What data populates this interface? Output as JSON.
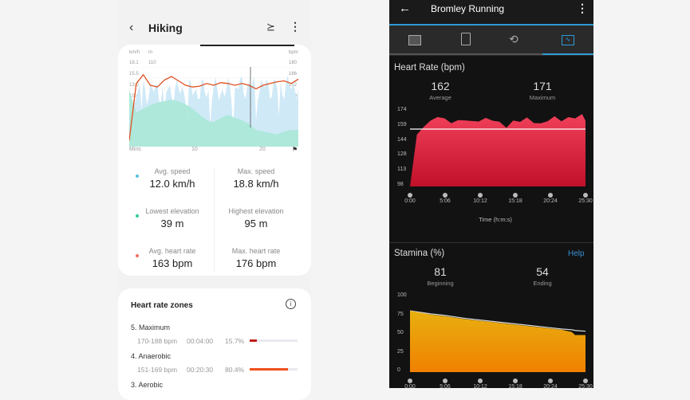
{
  "left": {
    "header": {
      "title": "Hiking"
    },
    "chart": {
      "left_units": [
        "km/h",
        "m"
      ],
      "right_unit": "bpm",
      "speed_ticks": [
        "18.1",
        "15.5",
        "13.0",
        "10.4",
        "7.8",
        "5.2",
        "2.6"
      ],
      "elevation_ticks": [
        "110"
      ],
      "bpm_ticks": [
        "180",
        "166",
        "152",
        "139",
        "125",
        "111",
        "97"
      ],
      "x_label": "Mins",
      "x_ticks": [
        "10",
        "20"
      ]
    },
    "stats": [
      {
        "label": "Avg. speed",
        "value": "12.0 km/h",
        "color": "#5bc0de"
      },
      {
        "label": "Max. speed",
        "value": "18.8 km/h"
      },
      {
        "label": "Lowest elevation",
        "value": "39 m",
        "color": "#2ecc9a"
      },
      {
        "label": "Highest elevation",
        "value": "95 m"
      },
      {
        "label": "Avg. heart rate",
        "value": "163 bpm",
        "color": "#f07060"
      },
      {
        "label": "Max. heart rate",
        "value": "176 bpm"
      }
    ],
    "zones": {
      "title": "Heart rate zones",
      "items": [
        {
          "name": "5. Maximum",
          "range": "170-188 bpm",
          "time": "00:04:00",
          "pct": "15.7%",
          "fill": 0.157,
          "color": "#c0201a"
        },
        {
          "name": "4. Anaerobic",
          "range": "151-169 bpm",
          "time": "00:20:30",
          "pct": "80.4%",
          "fill": 0.804,
          "color": "#f05020"
        },
        {
          "name": "3. Aerobic"
        }
      ]
    }
  },
  "right": {
    "header": {
      "title": "Bromley Running"
    },
    "tabs": [
      "overview-icon",
      "details-icon",
      "laps-icon",
      "charts-icon"
    ],
    "active_tab": 3,
    "accent": "#2e9bd6",
    "hr": {
      "title": "Heart Rate (bpm)",
      "average": "162",
      "average_label": "Average",
      "maximum": "171",
      "maximum_label": "Maximum",
      "x_label": "Time (h:m:s)"
    },
    "stamina": {
      "title": "Stamina (%)",
      "help": "Help",
      "beginning": "81",
      "beginning_label": "Beginning",
      "ending": "54",
      "ending_label": "Ending"
    }
  },
  "chart_data": [
    {
      "type": "area",
      "title": "Heart Rate (bpm)",
      "xlabel": "Time (h:m:s)",
      "x_ticks": [
        "0:00",
        "5:06",
        "10:12",
        "15:18",
        "20:24",
        "25:30"
      ],
      "y_ticks": [
        174,
        159,
        144,
        128,
        113,
        98
      ],
      "ylim": [
        98,
        174
      ],
      "reference_line": 162,
      "x": [
        0,
        1,
        2,
        3,
        4,
        5,
        6,
        7,
        8,
        9,
        10,
        11,
        12,
        13,
        14,
        15,
        16,
        17,
        18,
        19,
        20,
        21,
        22,
        23,
        24,
        25,
        25.5
      ],
      "values": [
        98,
        150,
        158,
        164,
        168,
        166,
        162,
        164,
        165,
        163,
        164,
        166,
        165,
        162,
        158,
        163,
        164,
        166,
        163,
        160,
        165,
        167,
        165,
        166,
        168,
        169,
        164
      ]
    },
    {
      "type": "area",
      "title": "Stamina (%)",
      "x_ticks": [
        "0:00",
        "5:06",
        "10:12",
        "15:18",
        "20:24",
        "25:30"
      ],
      "y_ticks": [
        100,
        75,
        50,
        25,
        0
      ],
      "ylim": [
        0,
        100
      ],
      "x": [
        0,
        3,
        5,
        8,
        12,
        16,
        20,
        22,
        23.5,
        24,
        25.5
      ],
      "values": [
        81,
        76,
        74,
        70,
        66,
        62,
        58,
        56,
        53,
        49,
        49
      ],
      "potential": [
        81,
        77,
        75,
        71,
        67,
        63,
        59,
        57,
        56,
        55,
        54
      ]
    },
    {
      "type": "line",
      "title": "",
      "xlabel": "Mins",
      "x": [
        0,
        1,
        2,
        3,
        4,
        5,
        6,
        7,
        8,
        9,
        10,
        11,
        12,
        13,
        14,
        15,
        16,
        17,
        18,
        19,
        20,
        21,
        22,
        23,
        24
      ],
      "series": [
        {
          "values": [
            97,
            162,
            172,
            160,
            158,
            166,
            170,
            165,
            160,
            158,
            159,
            162,
            160,
            163,
            162,
            160,
            162,
            160,
            156,
            160,
            162,
            164,
            165,
            162,
            167
          ]
        }
      ]
    }
  ]
}
